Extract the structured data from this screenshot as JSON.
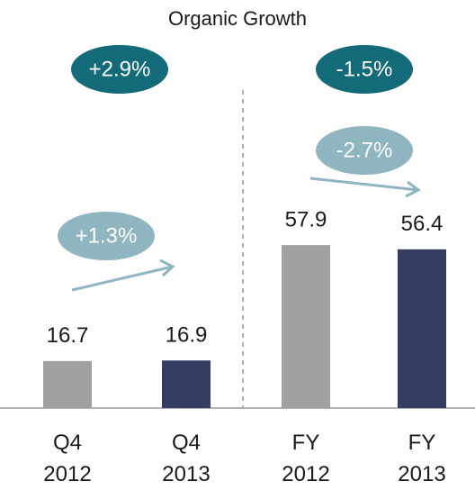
{
  "chart_data": {
    "type": "bar",
    "title": "Organic Growth",
    "categories": [
      "Q4 2012",
      "Q4 2013",
      "FY 2012",
      "FY 2013"
    ],
    "values": [
      16.7,
      16.9,
      57.9,
      56.4
    ],
    "colors": [
      "#a0a0a0",
      "#363d62",
      "#a0a0a0",
      "#363d62"
    ],
    "ylim": [
      0,
      145
    ],
    "annotations": [
      "+2.9%",
      "-1.5%",
      "+1.3%",
      "-2.7%"
    ]
  }
}
